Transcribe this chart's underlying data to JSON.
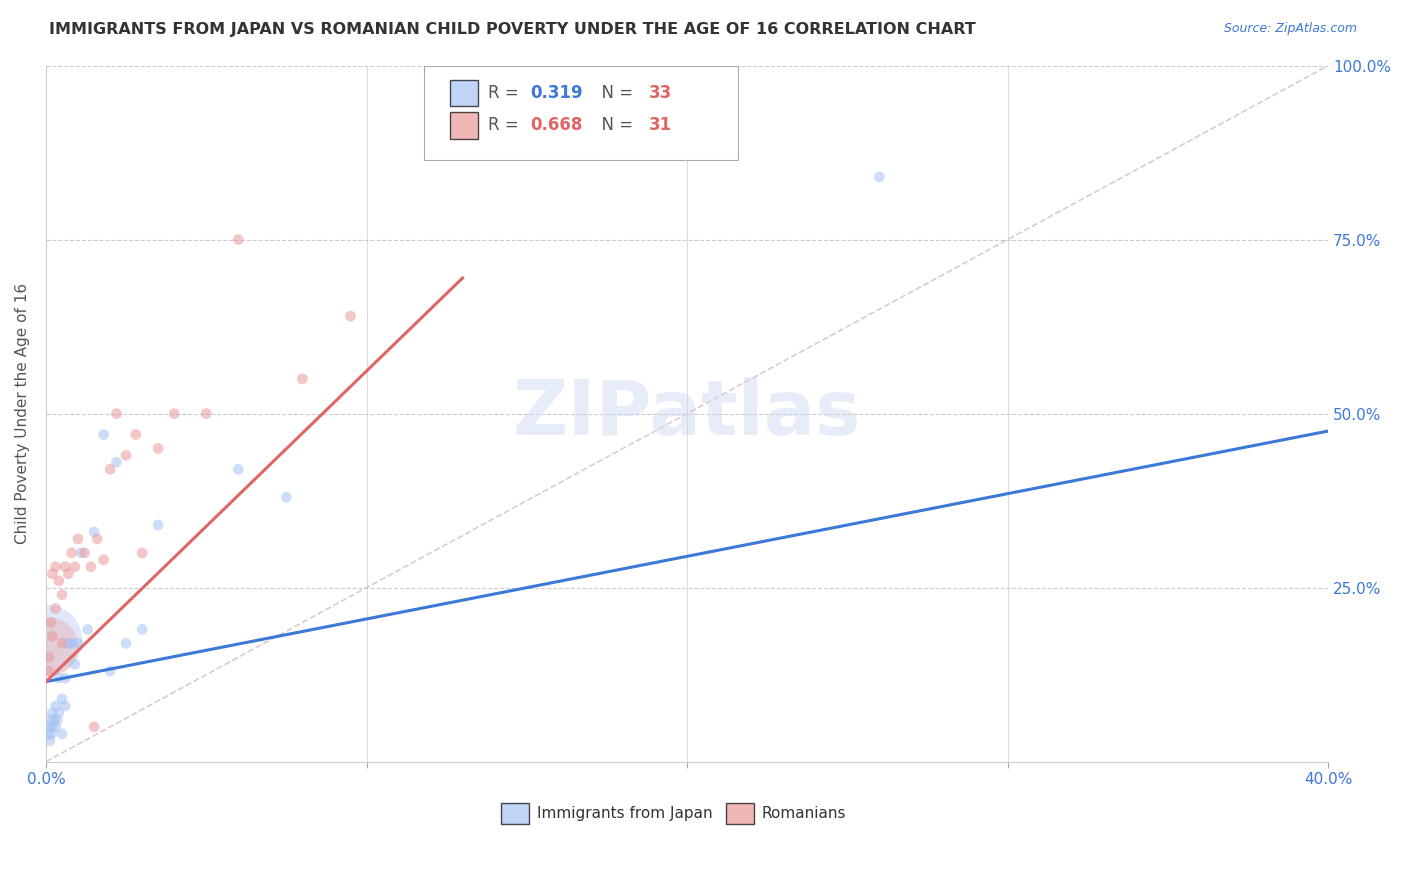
{
  "title": "IMMIGRANTS FROM JAPAN VS ROMANIAN CHILD POVERTY UNDER THE AGE OF 16 CORRELATION CHART",
  "source": "Source: ZipAtlas.com",
  "ylabel": "Child Poverty Under the Age of 16",
  "xlim": [
    0.0,
    0.4
  ],
  "ylim": [
    0.0,
    1.0
  ],
  "color_japan": "#a4c2f4",
  "color_romania": "#ea9999",
  "color_japan_line": "#3c78d8",
  "color_romania_line": "#e06666",
  "color_diagonal": "#c9b8b8",
  "watermark": "ZIPatlas",
  "legend_R1_val": "0.319",
  "legend_N1_val": "33",
  "legend_R2_val": "0.668",
  "legend_N2_val": "31",
  "legend_label1": "Immigrants from Japan",
  "legend_label2": "Romanians",
  "japan_x": [
    0.0008,
    0.001,
    0.0012,
    0.0015,
    0.0018,
    0.002,
    0.002,
    0.0025,
    0.003,
    0.003,
    0.0035,
    0.004,
    0.004,
    0.005,
    0.005,
    0.006,
    0.006,
    0.007,
    0.008,
    0.009,
    0.01,
    0.011,
    0.013,
    0.015,
    0.018,
    0.022,
    0.025,
    0.03,
    0.035,
    0.06,
    0.075,
    0.26,
    0.02
  ],
  "japan_y": [
    0.04,
    0.05,
    0.03,
    0.06,
    0.04,
    0.07,
    0.05,
    0.06,
    0.05,
    0.08,
    0.06,
    0.07,
    0.12,
    0.09,
    0.04,
    0.08,
    0.12,
    0.17,
    0.17,
    0.14,
    0.17,
    0.3,
    0.19,
    0.33,
    0.47,
    0.43,
    0.17,
    0.19,
    0.34,
    0.42,
    0.38,
    0.84,
    0.13
  ],
  "japan_sizes": [
    60,
    60,
    60,
    60,
    60,
    60,
    60,
    60,
    60,
    60,
    60,
    60,
    60,
    60,
    60,
    60,
    60,
    60,
    60,
    60,
    60,
    60,
    60,
    60,
    60,
    60,
    60,
    60,
    60,
    60,
    60,
    60,
    60
  ],
  "japan_big_x": [
    0.0005
  ],
  "japan_big_y": [
    0.175
  ],
  "japan_big_size": [
    2500
  ],
  "romania_x": [
    0.0008,
    0.001,
    0.0015,
    0.002,
    0.002,
    0.003,
    0.003,
    0.004,
    0.005,
    0.005,
    0.006,
    0.007,
    0.008,
    0.009,
    0.01,
    0.012,
    0.014,
    0.016,
    0.02,
    0.022,
    0.025,
    0.03,
    0.035,
    0.04,
    0.05,
    0.06,
    0.08,
    0.095,
    0.015,
    0.018,
    0.028
  ],
  "romania_y": [
    0.13,
    0.15,
    0.2,
    0.18,
    0.27,
    0.22,
    0.28,
    0.26,
    0.17,
    0.24,
    0.28,
    0.27,
    0.3,
    0.28,
    0.32,
    0.3,
    0.28,
    0.32,
    0.42,
    0.5,
    0.44,
    0.3,
    0.45,
    0.5,
    0.5,
    0.75,
    0.55,
    0.64,
    0.05,
    0.29,
    0.47
  ],
  "romania_sizes": [
    60,
    60,
    60,
    60,
    60,
    60,
    60,
    60,
    60,
    60,
    60,
    60,
    60,
    60,
    60,
    60,
    60,
    60,
    60,
    60,
    60,
    60,
    60,
    60,
    60,
    60,
    60,
    60,
    60,
    60,
    60
  ],
  "romania_big_x": [
    0.001
  ],
  "romania_big_y": [
    0.165
  ],
  "romania_big_size": [
    1800
  ],
  "japan_line_x": [
    0.0,
    0.4
  ],
  "japan_line_y": [
    0.115,
    0.475
  ],
  "romania_line_x": [
    0.0,
    0.13
  ],
  "romania_line_y": [
    0.115,
    0.695
  ]
}
